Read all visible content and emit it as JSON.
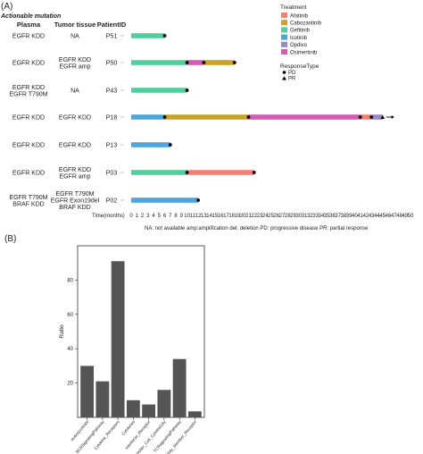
{
  "panel_a_label": "(A)",
  "panel_b_label": "(B)",
  "subtitle": "Actionable mutation",
  "headers": {
    "plasma": "Plasma",
    "tissue": "Tumor tissue",
    "patient": "PatientID"
  },
  "footnote": "NA:  not available  amp:amplification del:  deletion  PD: progressive disease  PR: partial response",
  "chart_data": [
    {
      "type": "swimmer",
      "xlabel": "Time(months)",
      "xlim": [
        0,
        50
      ],
      "ticks": [
        0,
        1,
        2,
        3,
        4,
        5,
        6,
        7,
        8,
        9,
        10,
        11,
        12,
        13,
        14,
        15,
        16,
        17,
        18,
        19,
        20,
        21,
        22,
        23,
        24,
        25,
        26,
        27,
        28,
        29,
        30,
        31,
        32,
        33,
        34,
        35,
        36,
        37,
        38,
        39,
        40,
        41,
        42,
        43,
        44,
        45,
        46,
        47,
        48,
        49,
        50
      ],
      "legend": {
        "treatment_title": "Treatment",
        "treatments": [
          {
            "name": "Afatinib",
            "color": "#f47f72"
          },
          {
            "name": "Cabozantinib",
            "color": "#c9a227"
          },
          {
            "name": "Gefitinib",
            "color": "#4fcf9c"
          },
          {
            "name": "Icotinib",
            "color": "#4aa6dc"
          },
          {
            "name": "Opdivo",
            "color": "#9a86c9"
          },
          {
            "name": "Osimertinib",
            "color": "#d55bb6"
          }
        ],
        "response_title": "ResponseType",
        "responses": [
          "PD",
          "PR"
        ]
      },
      "patients": [
        {
          "id": "P51",
          "plasma": [
            "EGFR KDD"
          ],
          "tissue": [
            "NA"
          ],
          "segments": [
            {
              "treatment": "Gefitinib",
              "start": 0,
              "end": 6
            }
          ],
          "events": [
            {
              "type": "PD",
              "t": 6
            }
          ],
          "ongoing": false
        },
        {
          "id": "P50",
          "plasma": [
            "EGFR KDD"
          ],
          "tissue": [
            "EGFR KDD",
            "EGFR amp"
          ],
          "segments": [
            {
              "treatment": "Gefitinib",
              "start": 0,
              "end": 10
            },
            {
              "treatment": "Osimertinib",
              "start": 10,
              "end": 13
            },
            {
              "treatment": "Cabozantinib",
              "start": 13,
              "end": 18.5
            }
          ],
          "events": [
            {
              "type": "PD",
              "t": 10
            },
            {
              "type": "PD",
              "t": 13
            },
            {
              "type": "PD",
              "t": 18.5
            }
          ],
          "ongoing": false
        },
        {
          "id": "P43",
          "plasma": [
            "EGFR KDD",
            "EGFR T790M"
          ],
          "tissue": [
            "NA"
          ],
          "segments": [
            {
              "treatment": "Gefitinib",
              "start": 0,
              "end": 10
            }
          ],
          "events": [
            {
              "type": "PD",
              "t": 10
            }
          ],
          "ongoing": false
        },
        {
          "id": "P18",
          "plasma": [
            "EGFR KDD"
          ],
          "tissue": [
            "EGFR KDD"
          ],
          "segments": [
            {
              "treatment": "Icotinib",
              "start": 0,
              "end": 6
            },
            {
              "treatment": "Cabozantinib",
              "start": 6,
              "end": 21
            },
            {
              "treatment": "Osimertinib",
              "start": 21,
              "end": 41
            },
            {
              "treatment": "Afatinib",
              "start": 41,
              "end": 43
            },
            {
              "treatment": "Opdivo",
              "start": 43,
              "end": 45
            }
          ],
          "events": [
            {
              "type": "PD",
              "t": 6
            },
            {
              "type": "PD",
              "t": 21
            },
            {
              "type": "PD",
              "t": 41
            },
            {
              "type": "PD",
              "t": 43
            },
            {
              "type": "PR",
              "t": 45
            }
          ],
          "ongoing": true
        },
        {
          "id": "P13",
          "plasma": [
            "EGFR KDD"
          ],
          "tissue": [
            "EGFR KDD"
          ],
          "segments": [
            {
              "treatment": "Icotinib",
              "start": 0,
              "end": 7
            }
          ],
          "events": [
            {
              "type": "PD",
              "t": 7
            }
          ],
          "ongoing": false
        },
        {
          "id": "P03",
          "plasma": [
            "EGFR KDD"
          ],
          "tissue": [
            "EGFR KDD",
            "EGFR amp"
          ],
          "segments": [
            {
              "treatment": "Gefitinib",
              "start": 0,
              "end": 10
            },
            {
              "treatment": "Afatinib",
              "start": 10,
              "end": 22
            }
          ],
          "events": [
            {
              "type": "PD",
              "t": 10
            },
            {
              "type": "PD",
              "t": 22
            }
          ],
          "ongoing": false
        },
        {
          "id": "P02",
          "plasma": [
            "EGFR T790M",
            "BRAF KDD"
          ],
          "tissue": [
            "EGFR T790M",
            "EGFR Exon19del",
            "BRAF KDD"
          ],
          "segments": [
            {
              "treatment": "Icotinib",
              "start": 0,
              "end": 12
            }
          ],
          "events": [
            {
              "type": "PD",
              "t": 12
            }
          ],
          "ongoing": false
        }
      ]
    },
    {
      "type": "bar",
      "ylabel": "Ratio",
      "ylim": [
        0,
        100
      ],
      "yticks": [
        20,
        40,
        60,
        80
      ],
      "categories": [
        "Antimicrobials",
        "BCRSignalingPathway",
        "Cytokine_Receptors",
        "Cytokines",
        "Interferon_Receptor",
        "NaturalKiller_Cell_Cytotoxicity",
        "TCRsignalingPathway",
        "TGFb_Family_Member_Receptor"
      ],
      "values": [
        30,
        21,
        91,
        10,
        7.5,
        16,
        34,
        3.5
      ],
      "bar_color": "#555555"
    }
  ]
}
